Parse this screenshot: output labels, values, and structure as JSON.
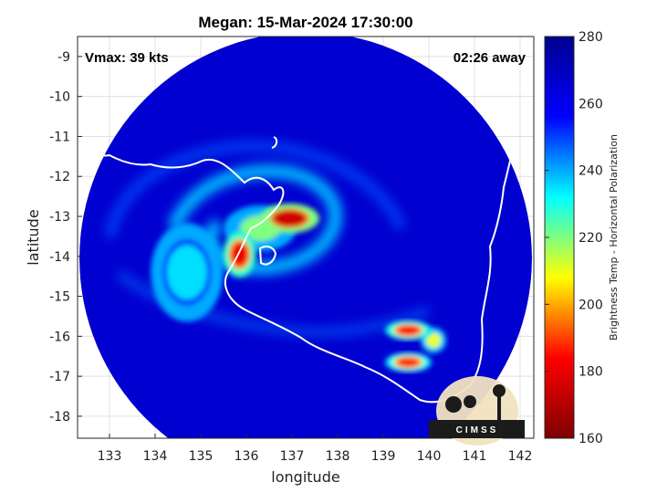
{
  "chart_data": {
    "type": "heatmap",
    "title": "Megan: 15-Mar-2024 17:30:00",
    "annotations": {
      "vmax": "Vmax: 39 kts",
      "time_offset": "02:26 away"
    },
    "xlabel": "longitude",
    "ylabel": "latitude",
    "xlim": [
      132.3,
      142.3
    ],
    "ylim": [
      -18.55,
      -8.5
    ],
    "x_ticks": [
      133,
      134,
      135,
      136,
      137,
      138,
      139,
      140,
      141,
      142
    ],
    "y_ticks": [
      -9,
      -10,
      -11,
      -12,
      -13,
      -14,
      -15,
      -16,
      -17,
      -18
    ],
    "grid": true,
    "colorbar": {
      "label": "Brightness Temp - Horizontal Polarization",
      "range": [
        160,
        280
      ],
      "ticks": [
        160,
        180,
        200,
        220,
        240,
        260,
        280
      ],
      "colormap": [
        "#7f0000",
        "#ff0000",
        "#ffff00",
        "#00ffff",
        "#0000ff",
        "#00008f"
      ]
    },
    "swath": {
      "center_lon": 137.3,
      "center_lat": -13.55,
      "background_temp": 266
    },
    "features": [
      {
        "name": "eyewall-north",
        "lon": 136.95,
        "lat": -13.05,
        "temp": 175
      },
      {
        "name": "eyewall-west",
        "lon": 135.85,
        "lat": -13.95,
        "temp": 182
      },
      {
        "name": "inner-band",
        "lon": 136.3,
        "lat": -13.3,
        "temp": 220
      },
      {
        "name": "east-convection-1",
        "lon": 139.55,
        "lat": -15.85,
        "temp": 185
      },
      {
        "name": "east-convection-2",
        "lon": 139.55,
        "lat": -16.65,
        "temp": 188
      },
      {
        "name": "east-convection-3",
        "lon": 140.1,
        "lat": -16.1,
        "temp": 210
      },
      {
        "name": "outer-band",
        "lon": 134.7,
        "lat": -14.4,
        "temp": 235
      }
    ],
    "logo": {
      "text": "CIMSS"
    }
  },
  "colors": {
    "background": "#ffffff",
    "coastline": "#ffffff",
    "grid": "#e0e0e0"
  }
}
